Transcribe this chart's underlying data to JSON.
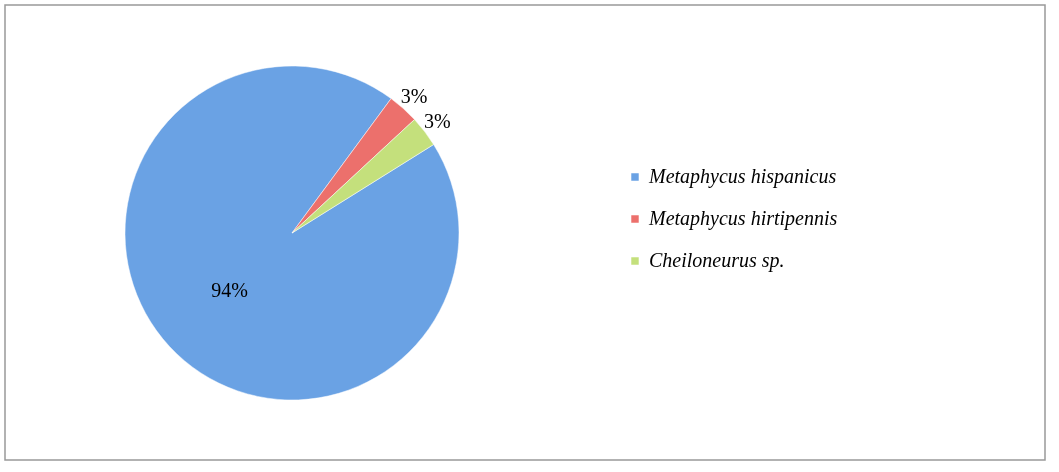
{
  "chart_data": {
    "type": "pie",
    "categories": [
      "Metaphycus hispanicus",
      "Metaphycus hirtipennis",
      "Cheiloneurus sp."
    ],
    "values": [
      94,
      3,
      3
    ],
    "value_labels": [
      "94%",
      "3%",
      "3%"
    ],
    "colors": [
      "#6aa2e4",
      "#ec706c",
      "#c4e07c"
    ],
    "legend": "right"
  }
}
